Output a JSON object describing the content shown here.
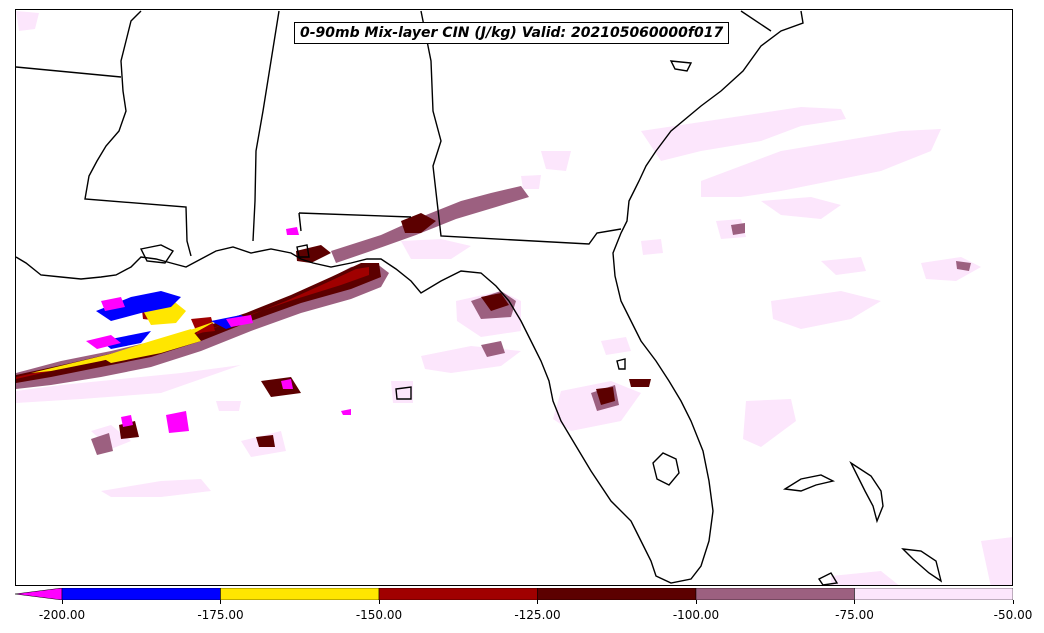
{
  "title": "0-90mb Mix-layer CIN (J/kg) Valid: 202105060000f017",
  "colorbar": {
    "ticks": [
      "-200.00",
      "-175.00",
      "-150.00",
      "-125.00",
      "-100.00",
      "-75.00",
      "-50.00"
    ],
    "bins": [
      {
        "from": -200,
        "to": -175,
        "color": "#0000ff"
      },
      {
        "from": -175,
        "to": -150,
        "color": "#ffe600"
      },
      {
        "from": -150,
        "to": -125,
        "color": "#a00000"
      },
      {
        "from": -125,
        "to": -100,
        "color": "#5c0000"
      },
      {
        "from": -100,
        "to": -75,
        "color": "#9c6080"
      },
      {
        "from": -75,
        "to": -50,
        "color": "#fce6fc"
      }
    ],
    "under_color": "#ff00ff"
  }
}
